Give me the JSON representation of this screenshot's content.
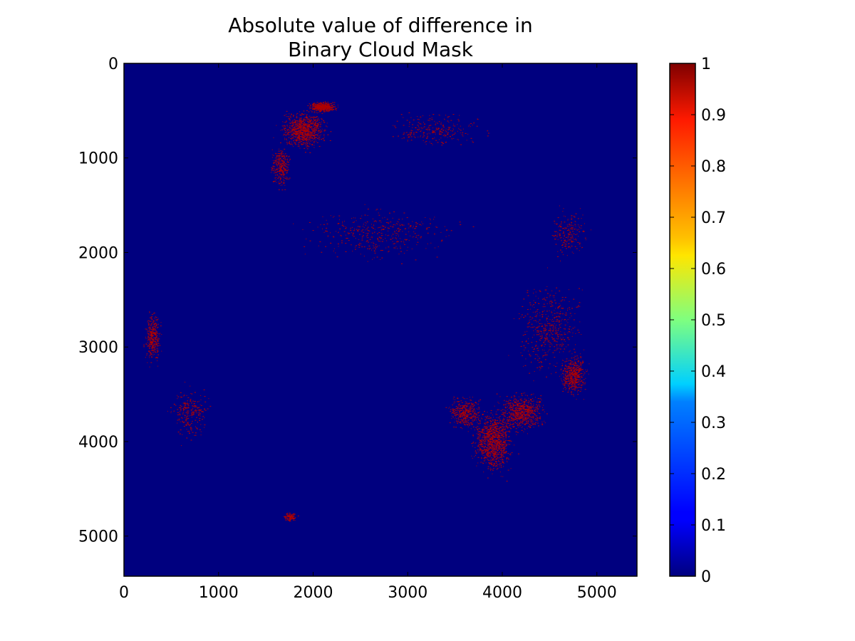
{
  "chart_data": {
    "type": "heatmap",
    "title_lines": [
      "Absolute value of difference in",
      "Binary Cloud Mask"
    ],
    "xlabel": "",
    "ylabel": "",
    "xlim": [
      0,
      5424
    ],
    "ylim": [
      5424,
      0
    ],
    "x_ticks": [
      "0",
      "1000",
      "2000",
      "3000",
      "4000",
      "5000"
    ],
    "y_ticks": [
      "0",
      "1000",
      "2000",
      "3000",
      "4000",
      "5000"
    ],
    "x_tick_values": [
      0,
      1000,
      2000,
      3000,
      4000,
      5000
    ],
    "y_tick_values": [
      0,
      1000,
      2000,
      3000,
      4000,
      5000
    ],
    "colorbar": {
      "range": [
        0,
        1
      ],
      "colormap": "jet",
      "ticks": [
        "0",
        "0.1",
        "0.2",
        "0.3",
        "0.4",
        "0.5",
        "0.6",
        "0.7",
        "0.8",
        "0.9",
        "1"
      ],
      "tick_values": [
        0,
        0.1,
        0.2,
        0.3,
        0.4,
        0.5,
        0.6,
        0.7,
        0.8,
        0.9,
        1.0
      ]
    },
    "values_present": [
      0,
      1
    ],
    "background_color": "#00007f",
    "difference_color": "#b00000",
    "grid": false,
    "legend": "none"
  }
}
